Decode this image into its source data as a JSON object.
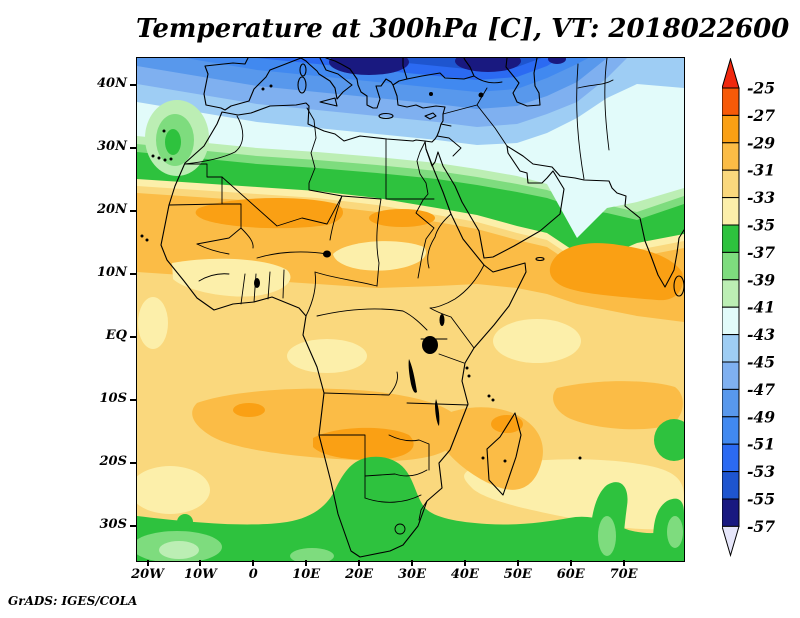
{
  "header": {
    "title": "Temperature at 300hPa [C], VT: 2018022600"
  },
  "footer": {
    "credit": "GrADS: IGES/COLA"
  },
  "chart_data": {
    "type": "heatmap",
    "title": "Temperature at 300hPa [C], VT: 2018022600",
    "variable": "Temperature",
    "level": "300hPa",
    "units": "C",
    "valid_time": "2018022600",
    "projection": "latlon",
    "region": "Africa, Mediterranean, Middle East (approx 22W-81E, 35S-44N)",
    "grid": false,
    "legend_position": "right",
    "x_axis": {
      "label": "longitude",
      "ticks": [
        "20W",
        "10W",
        "0",
        "10E",
        "20E",
        "30E",
        "40E",
        "50E",
        "60E",
        "70E"
      ]
    },
    "y_axis": {
      "label": "latitude",
      "ticks": [
        "40N",
        "30N",
        "20N",
        "10N",
        "EQ",
        "10S",
        "20S",
        "30S"
      ]
    },
    "colorbar": {
      "levels": [
        -25,
        -27,
        -29,
        -31,
        -33,
        -35,
        -37,
        -39,
        -41,
        -43,
        -45,
        -47,
        -49,
        -51,
        -53,
        -55,
        -57
      ],
      "cell_colors": [
        "#f75a08",
        "#faa014",
        "#fbbc46",
        "#fad87d",
        "#fcefaa",
        "#2ec23e",
        "#7edc7e",
        "#bceeb4",
        "#e2fbfa",
        "#9ecdf4",
        "#7fb0f0",
        "#5898ec",
        "#4189f0",
        "#2b6af2",
        "#1e55cf",
        "#191980"
      ],
      "over_color": "#f0280e",
      "under_color": "#e6e6fa",
      "border_color": "#000000"
    },
    "features": [
      "Cold cores below -55C over the Balkans and Black Sea region at the top edge",
      "-43C to -53C (blues) across the Mediterranean, southern Europe and Turkey",
      "Pale -41C to -43C air over the Middle East, Iran and southwest Asia",
      "Sharp green transition band (-35C to -41C) along ~22-28N from Morocco to the Red Sea",
      "Warm -29C to -31C band across the Sahara and Sahel",
      "Broad -31C to -33C over equatorial Africa with -29C patches",
      "-27C to -29C warm streak east of the Horn of Africa toward western India",
      "-29C to -31C over Angola, Zambia, Mozambique and Madagascar",
      "Cooler -35C to -39C (greens) over South Africa and along the southern map edge",
      "Small cool green patch over the subtropical Atlantic west of Morocco"
    ]
  }
}
